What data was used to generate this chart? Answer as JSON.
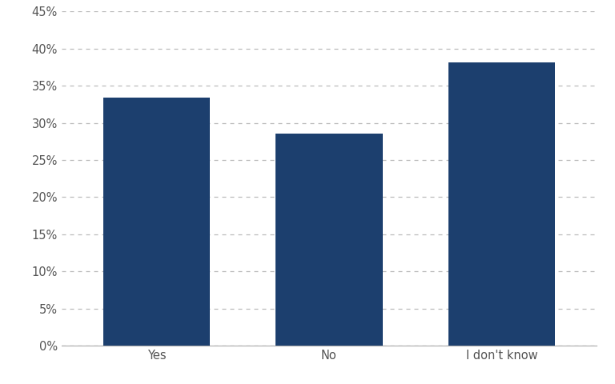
{
  "categories": [
    "Yes",
    "No",
    "I don't know"
  ],
  "values": [
    0.334,
    0.286,
    0.381
  ],
  "bar_color": "#1c3f6e",
  "ylim": [
    0,
    0.45
  ],
  "yticks": [
    0.0,
    0.05,
    0.1,
    0.15,
    0.2,
    0.25,
    0.3,
    0.35,
    0.4,
    0.45
  ],
  "ytick_labels": [
    "0%",
    "5%",
    "10%",
    "15%",
    "20%",
    "25%",
    "30%",
    "35%",
    "40%",
    "45%"
  ],
  "grid_color": "#bbbbbb",
  "background_color": "#ffffff",
  "tick_label_fontsize": 10.5,
  "tick_label_color": "#555555",
  "bar_width": 0.62,
  "xlim": [
    -0.55,
    2.55
  ]
}
